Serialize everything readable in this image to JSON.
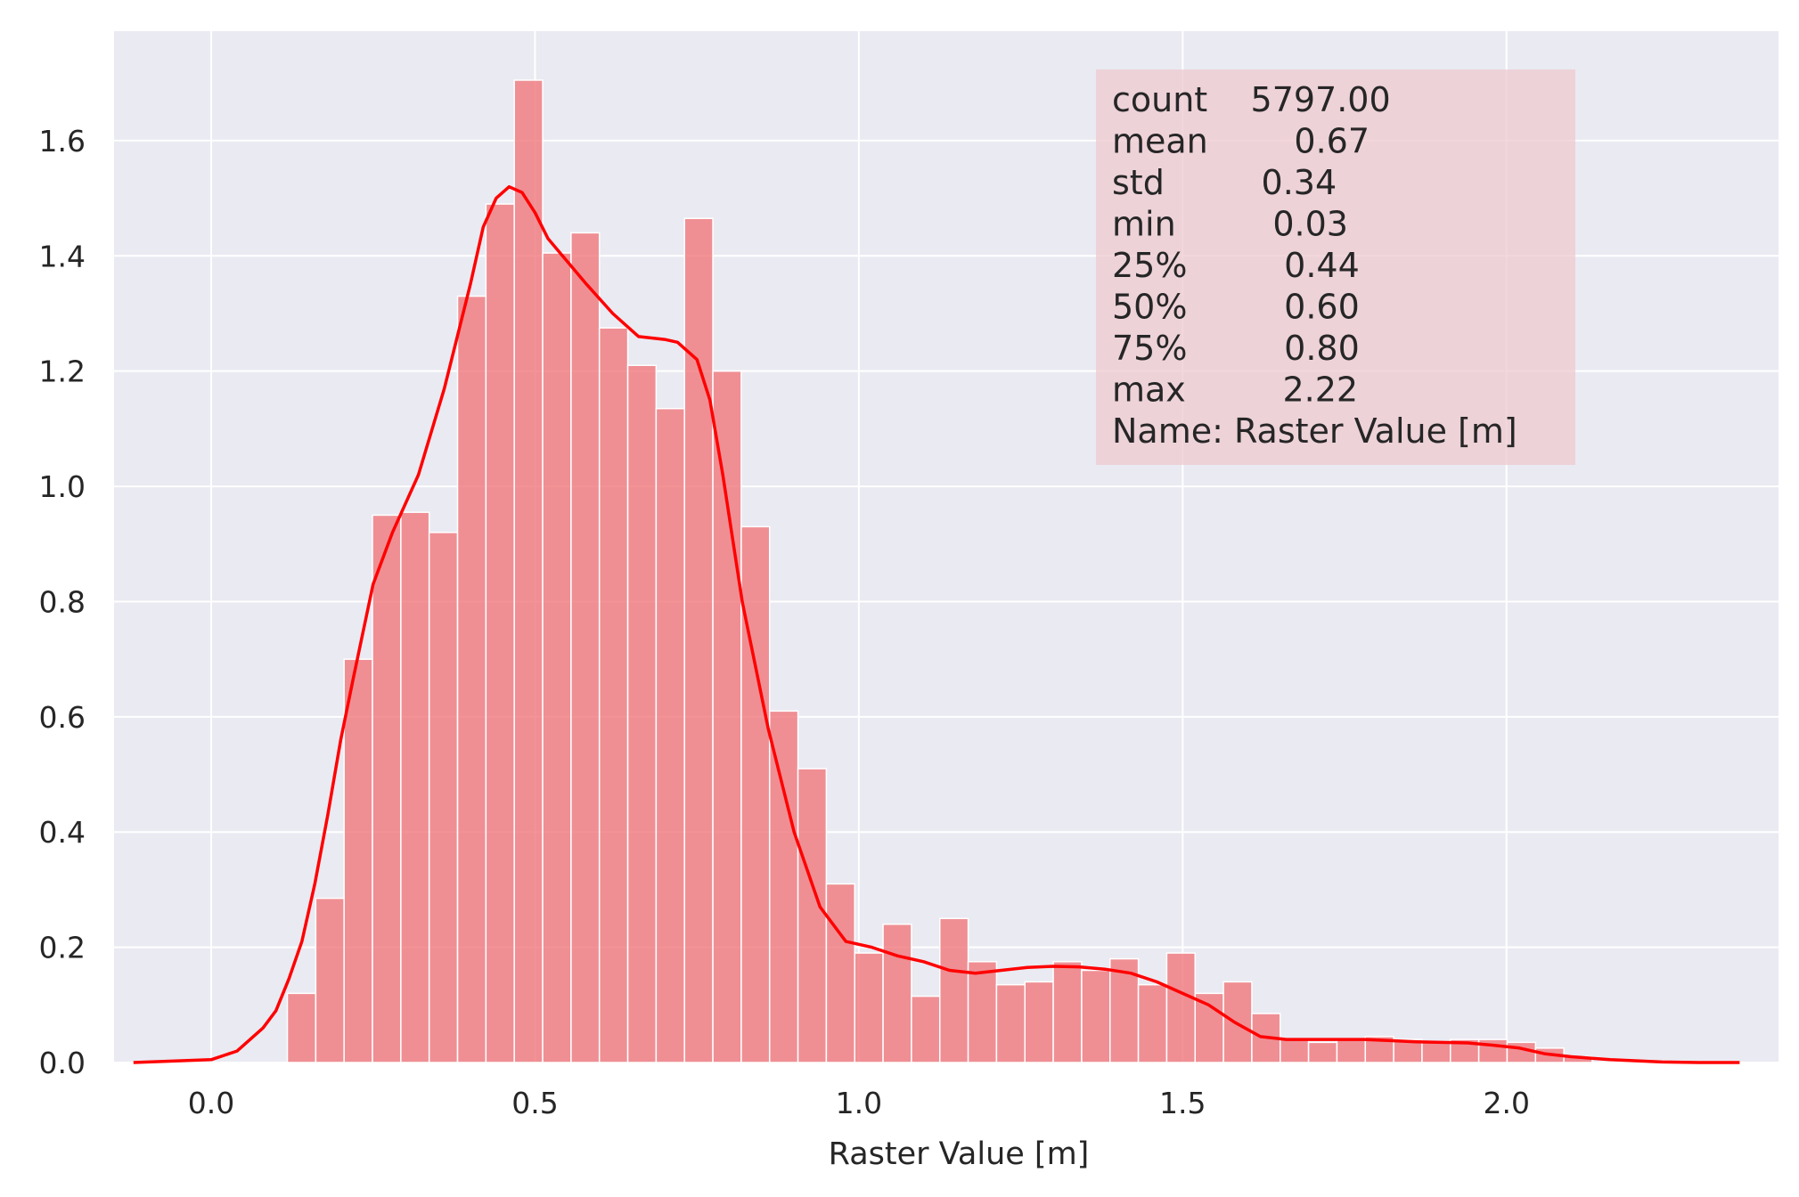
{
  "chart_data": {
    "type": "bar",
    "subtype": "histogram with kde line",
    "title": "",
    "xlabel": "Raster Value [m]",
    "ylabel": "",
    "xlim": [
      -0.15,
      2.42
    ],
    "ylim": [
      0,
      1.79
    ],
    "grid": true,
    "x_ticks": [
      0.0,
      0.5,
      1.0,
      1.5,
      2.0
    ],
    "x_tick_labels": [
      "0.0",
      "0.5",
      "1.0",
      "1.5",
      "2.0"
    ],
    "y_ticks": [
      0.0,
      0.2,
      0.4,
      0.6,
      0.8,
      1.0,
      1.2,
      1.4,
      1.6
    ],
    "y_tick_labels": [
      "0.0",
      "0.2",
      "0.4",
      "0.6",
      "0.8",
      "1.0",
      "1.2",
      "1.4",
      "1.6"
    ],
    "bin_edges_start": 0.03,
    "bin_width": 0.0438,
    "bar_values": [
      0.0,
      0.0,
      0.12,
      0.285,
      0.7,
      0.95,
      0.955,
      0.92,
      1.33,
      1.49,
      1.705,
      1.405,
      1.44,
      1.275,
      1.21,
      1.135,
      1.465,
      1.2,
      0.93,
      0.61,
      0.51,
      0.31,
      0.19,
      0.24,
      0.115,
      0.25,
      0.175,
      0.135,
      0.14,
      0.175,
      0.16,
      0.18,
      0.135,
      0.19,
      0.12,
      0.14,
      0.085,
      0.04,
      0.035,
      0.04,
      0.045,
      0.04,
      0.035,
      0.04,
      0.04,
      0.035,
      0.025,
      0.01
    ],
    "kde": {
      "x": [
        -0.12,
        0.0,
        0.04,
        0.08,
        0.1,
        0.12,
        0.14,
        0.16,
        0.18,
        0.2,
        0.22,
        0.25,
        0.28,
        0.32,
        0.36,
        0.4,
        0.42,
        0.44,
        0.46,
        0.48,
        0.5,
        0.52,
        0.55,
        0.58,
        0.62,
        0.66,
        0.7,
        0.72,
        0.75,
        0.77,
        0.79,
        0.82,
        0.86,
        0.9,
        0.94,
        0.98,
        1.02,
        1.06,
        1.1,
        1.14,
        1.18,
        1.22,
        1.26,
        1.3,
        1.34,
        1.38,
        1.42,
        1.46,
        1.5,
        1.54,
        1.58,
        1.62,
        1.66,
        1.7,
        1.74,
        1.78,
        1.82,
        1.86,
        1.9,
        1.94,
        1.98,
        2.02,
        2.06,
        2.1,
        2.16,
        2.24,
        2.3,
        2.36
      ],
      "y": [
        0.0,
        0.005,
        0.02,
        0.06,
        0.09,
        0.145,
        0.21,
        0.31,
        0.43,
        0.56,
        0.67,
        0.83,
        0.92,
        1.02,
        1.17,
        1.35,
        1.45,
        1.5,
        1.52,
        1.51,
        1.475,
        1.43,
        1.39,
        1.35,
        1.3,
        1.26,
        1.255,
        1.25,
        1.22,
        1.15,
        1.02,
        0.8,
        0.58,
        0.4,
        0.27,
        0.21,
        0.2,
        0.185,
        0.175,
        0.16,
        0.155,
        0.16,
        0.165,
        0.167,
        0.166,
        0.162,
        0.155,
        0.14,
        0.12,
        0.1,
        0.07,
        0.045,
        0.04,
        0.04,
        0.04,
        0.04,
        0.038,
        0.036,
        0.035,
        0.034,
        0.03,
        0.025,
        0.015,
        0.01,
        0.005,
        0.001,
        0.0,
        0.0
      ]
    },
    "colors": {
      "bars": "#f0787c",
      "kde": "#ff0000",
      "plot_background": "#eaeaf2",
      "stats_box": "#eec9cf"
    }
  },
  "stats_box": {
    "lines": [
      "count    5797.00",
      "mean        0.67",
      "std         0.34",
      "min         0.03",
      "25%         0.44",
      "50%         0.60",
      "75%         0.80",
      "max         2.22",
      "Name: Raster Value [m]"
    ]
  }
}
